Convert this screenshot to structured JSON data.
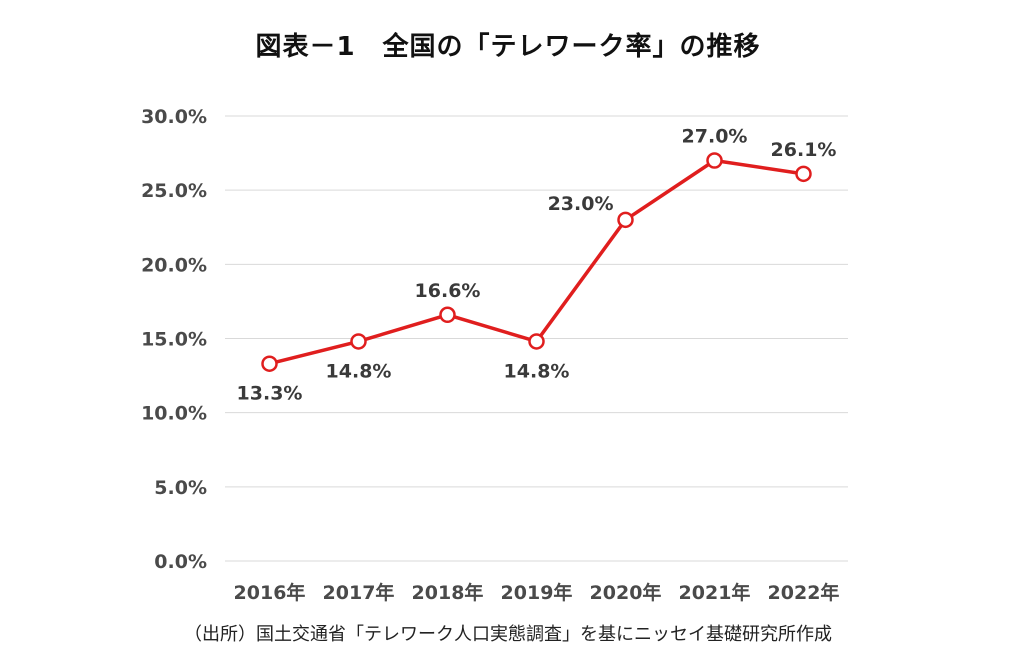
{
  "title": "図表－1　全国の「テレワーク率」の推移",
  "source": "（出所）国土交通省「テレワーク人口実態調査」を基にニッセイ基礎研究所作成",
  "colors": {
    "line": "#e01e1e",
    "grid": "#d9d9d9",
    "marker_fill": "#ffffff"
  },
  "chart_data": {
    "type": "line",
    "title": "図表－1　全国の「テレワーク率」の推移",
    "categories": [
      "2016年",
      "2017年",
      "2018年",
      "2019年",
      "2020年",
      "2021年",
      "2022年"
    ],
    "series": [
      {
        "values": [
          13.3,
          14.8,
          16.6,
          14.8,
          23.0,
          27.0,
          26.1
        ],
        "data_labels": [
          "13.3%",
          "14.8%",
          "16.6%",
          "14.8%",
          "23.0%",
          "27.0%",
          "26.1%"
        ],
        "label_positions": [
          "below",
          "below",
          "above",
          "below",
          "left",
          "above",
          "above"
        ]
      }
    ],
    "y_ticks": [
      0,
      5,
      10,
      15,
      20,
      25,
      30
    ],
    "y_tick_labels": [
      "0.0%",
      "5.0%",
      "10.0%",
      "15.0%",
      "20.0%",
      "25.0%",
      "30.0%"
    ],
    "ylim": [
      0,
      30
    ],
    "grid": true,
    "legend": "none",
    "xlabel": "",
    "ylabel": ""
  }
}
